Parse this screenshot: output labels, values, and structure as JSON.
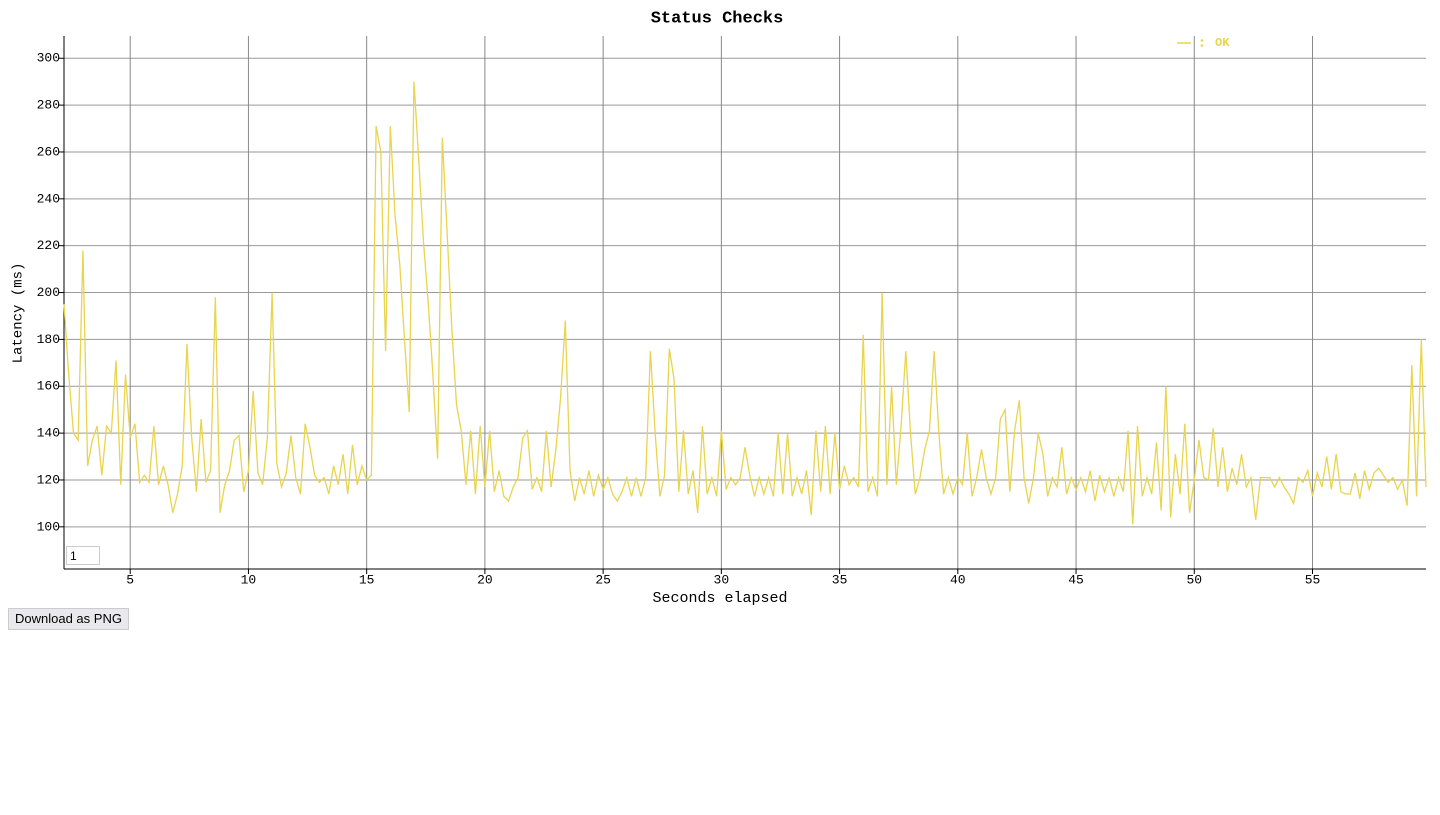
{
  "chart_data": {
    "type": "line",
    "title": "Status Checks",
    "xlabel": "Seconds elapsed",
    "ylabel": "Latency (ms)",
    "xlim": [
      2.2,
      59.8
    ],
    "xticks": [
      5,
      10,
      15,
      20,
      25,
      30,
      35,
      40,
      45,
      50,
      55
    ],
    "ylim": [
      82,
      309.5
    ],
    "yticks": [
      100,
      120,
      140,
      160,
      180,
      200,
      220,
      240,
      260,
      280,
      300
    ],
    "grid": true,
    "legend": "top-right",
    "x": [
      2.2,
      2.4,
      2.6,
      2.8,
      3.0,
      3.2,
      3.4,
      3.6,
      3.8,
      4.0,
      4.2,
      4.4,
      4.6,
      4.8,
      5.0,
      5.2,
      5.4,
      5.6,
      5.8,
      6.0,
      6.2,
      6.4,
      6.6,
      6.8,
      7.0,
      7.2,
      7.4,
      7.6,
      7.8,
      8.0,
      8.2,
      8.4,
      8.6,
      8.8,
      9.0,
      9.2,
      9.4,
      9.6,
      9.8,
      10.0,
      10.2,
      10.4,
      10.6,
      10.8,
      11.0,
      11.2,
      11.4,
      11.6,
      11.8,
      12.0,
      12.2,
      12.4,
      12.6,
      12.8,
      13.0,
      13.2,
      13.4,
      13.6,
      13.8,
      14.0,
      14.2,
      14.4,
      14.6,
      14.8,
      15.0,
      15.2,
      15.4,
      15.6,
      15.8,
      16.0,
      16.2,
      16.4,
      16.6,
      16.8,
      17.0,
      17.2,
      17.4,
      17.6,
      17.8,
      18.0,
      18.2,
      18.4,
      18.6,
      18.8,
      19.0,
      19.2,
      19.4,
      19.6,
      19.8,
      20.0,
      20.2,
      20.4,
      20.6,
      20.8,
      21.0,
      21.2,
      21.4,
      21.6,
      21.8,
      22.0,
      22.2,
      22.4,
      22.6,
      22.8,
      23.0,
      23.2,
      23.4,
      23.6,
      23.8,
      24.0,
      24.2,
      24.4,
      24.6,
      24.8,
      25.0,
      25.2,
      25.4,
      25.6,
      25.8,
      26.0,
      26.2,
      26.4,
      26.6,
      26.8,
      27.0,
      27.2,
      27.4,
      27.6,
      27.8,
      28.0,
      28.2,
      28.4,
      28.6,
      28.8,
      29.0,
      29.2,
      29.4,
      29.6,
      29.8,
      30.0,
      30.2,
      30.4,
      30.6,
      30.8,
      31.0,
      31.2,
      31.4,
      31.6,
      31.8,
      32.0,
      32.2,
      32.4,
      32.6,
      32.8,
      33.0,
      33.2,
      33.4,
      33.6,
      33.8,
      34.0,
      34.2,
      34.4,
      34.6,
      34.8,
      35.0,
      35.2,
      35.4,
      35.6,
      35.8,
      36.0,
      36.2,
      36.4,
      36.6,
      36.8,
      37.0,
      37.2,
      37.4,
      37.6,
      37.8,
      38.0,
      38.2,
      38.4,
      38.6,
      38.8,
      39.0,
      39.2,
      39.4,
      39.6,
      39.8,
      40.0,
      40.2,
      40.4,
      40.6,
      40.8,
      41.0,
      41.2,
      41.4,
      41.6,
      41.8,
      42.0,
      42.2,
      42.4,
      42.6,
      42.8,
      43.0,
      43.2,
      43.4,
      43.6,
      43.8,
      44.0,
      44.2,
      44.4,
      44.6,
      44.8,
      45.0,
      45.2,
      45.4,
      45.6,
      45.8,
      46.0,
      46.2,
      46.4,
      46.6,
      46.8,
      47.0,
      47.2,
      47.4,
      47.6,
      47.8,
      48.0,
      48.2,
      48.4,
      48.6,
      48.8,
      49.0,
      49.2,
      49.4,
      49.6,
      49.8,
      50.0,
      50.2,
      50.4,
      50.6,
      50.8,
      51.0,
      51.2,
      51.4,
      51.6,
      51.8,
      52.0,
      52.2,
      52.4,
      52.6,
      52.8,
      53.0,
      53.2,
      53.4,
      53.6,
      53.8,
      54.0,
      54.2,
      54.4,
      54.6,
      54.8,
      55.0,
      55.2,
      55.4,
      55.6,
      55.8,
      56.0,
      56.2,
      56.4,
      56.6,
      56.8,
      57.0,
      57.2,
      57.4,
      57.6,
      57.8,
      58.0,
      58.2,
      58.4,
      58.6,
      58.8,
      59.0,
      59.2,
      59.4,
      59.6,
      59.8
    ],
    "series": [
      {
        "name": "OK",
        "color": "#e8d44d",
        "values": [
          195,
          165,
          140,
          137,
          218,
          126,
          137,
          143,
          122,
          143,
          140,
          171,
          118,
          165,
          138,
          144,
          119,
          122,
          119,
          143,
          118,
          126,
          118,
          106,
          114,
          126,
          178,
          138,
          115,
          146,
          119,
          124,
          198,
          106,
          118,
          124,
          137,
          139,
          115,
          124,
          158,
          123,
          118,
          138,
          200,
          127,
          117,
          123,
          139,
          121,
          114,
          144,
          134,
          122,
          119,
          121,
          114,
          126,
          118,
          131,
          114,
          135,
          118,
          126,
          120,
          122,
          271,
          260,
          175,
          271,
          233,
          212,
          180,
          149,
          290,
          257,
          222,
          196,
          165,
          129,
          266,
          226,
          185,
          152,
          141,
          118,
          141,
          114,
          143,
          117,
          141,
          115,
          124,
          113,
          111,
          117,
          121,
          138,
          141,
          116,
          121,
          115,
          141,
          117,
          133,
          155,
          188,
          124,
          111,
          121,
          114,
          124,
          113,
          122,
          116,
          121,
          114,
          111,
          115,
          121,
          113,
          121,
          113,
          121,
          175,
          140,
          113,
          122,
          176,
          163,
          115,
          141,
          114,
          124,
          106,
          143,
          114,
          121,
          113,
          141,
          116,
          121,
          118,
          121,
          134,
          122,
          113,
          121,
          114,
          121,
          113,
          140,
          114,
          140,
          113,
          121,
          114,
          124,
          105,
          141,
          115,
          143,
          114,
          140,
          116,
          126,
          118,
          121,
          117,
          182,
          115,
          121,
          113,
          200,
          118,
          160,
          118,
          143,
          175,
          140,
          114,
          121,
          133,
          141,
          175,
          140,
          114,
          121,
          114,
          121,
          118,
          140,
          113,
          121,
          133,
          121,
          114,
          121,
          146,
          150,
          115,
          141,
          154,
          121,
          110,
          121,
          140,
          131,
          113,
          121,
          117,
          134,
          114,
          121,
          116,
          121,
          115,
          124,
          111,
          122,
          115,
          121,
          113,
          121,
          115,
          141,
          101,
          143,
          113,
          121,
          114,
          136,
          107,
          160,
          104,
          131,
          114,
          144,
          106,
          120,
          137,
          121,
          120,
          142,
          117,
          134,
          115,
          125,
          118,
          131,
          117,
          121,
          103,
          121,
          121,
          121,
          117,
          121,
          117,
          114,
          110,
          121,
          119,
          124,
          113,
          123,
          117,
          130,
          116,
          131,
          115,
          114,
          114,
          123,
          112,
          124,
          116,
          123,
          125,
          122,
          119,
          121,
          116,
          120,
          109,
          169,
          113,
          180,
          117
        ]
      }
    ]
  },
  "controls": {
    "zoom_input": "1",
    "download_button": "Download as PNG"
  }
}
